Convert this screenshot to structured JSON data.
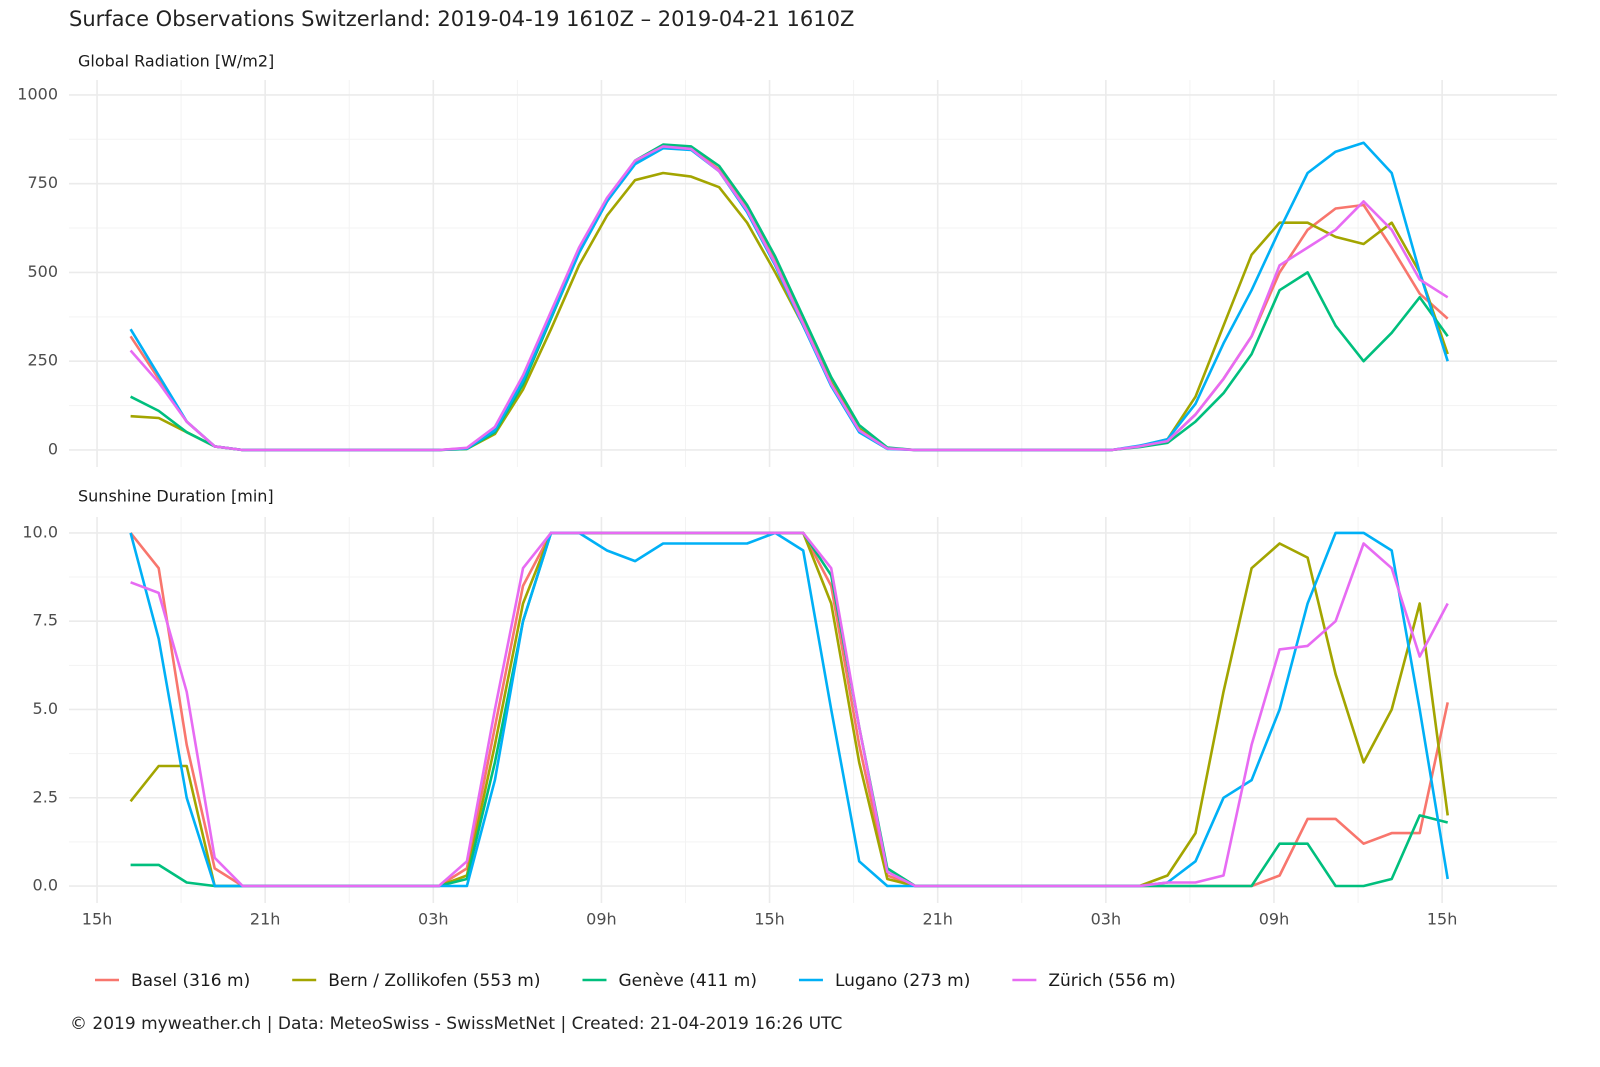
{
  "title": "Surface Observations Switzerland: 2019-04-19 1610Z – 2019-04-21 1610Z",
  "caption": "© 2019 myweather.ch | Data: MeteoSwiss - SwissMetNet | Created: 21-04-2019 16:26 UTC",
  "chart_data": [
    {
      "type": "line",
      "title": "Global Radiation [W/m2]",
      "x": [
        1.2,
        2.2,
        3.2,
        4.2,
        5.2,
        6.2,
        7.2,
        8.2,
        9.2,
        10.2,
        11.2,
        12.2,
        13.2,
        14.2,
        15.2,
        16.2,
        17.2,
        18.2,
        19.2,
        20.2,
        21.2,
        22.2,
        23.2,
        24.2,
        25.2,
        26.2,
        27.2,
        28.2,
        29.2,
        30.2,
        31.2,
        32.2,
        33.2,
        34.2,
        35.2,
        36.2,
        37.2,
        38.2,
        39.2,
        40.2,
        41.2,
        42.2,
        43.2,
        44.2,
        45.2,
        46.2,
        47.2,
        48.2
      ],
      "xlim": [
        -1.0,
        52.1
      ],
      "xticks": [
        {
          "value": 0,
          "label": "15h"
        },
        {
          "value": 6,
          "label": "21h"
        },
        {
          "value": 12,
          "label": "03h"
        },
        {
          "value": 18,
          "label": "09h"
        },
        {
          "value": 24,
          "label": "15h"
        },
        {
          "value": 30,
          "label": "21h"
        },
        {
          "value": 36,
          "label": "03h"
        },
        {
          "value": 42,
          "label": "09h"
        },
        {
          "value": 48,
          "label": "15h"
        }
      ],
      "ylim": [
        -48,
        1042
      ],
      "yticks": [
        0,
        250,
        500,
        750,
        1000
      ],
      "grid": true,
      "series": [
        {
          "name": "Basel (316 m)",
          "color": "#F8766D",
          "values": [
            320,
            200,
            80,
            10,
            0,
            0,
            0,
            0,
            0,
            0,
            0,
            0,
            5,
            60,
            200,
            380,
            560,
            700,
            810,
            855,
            850,
            790,
            680,
            530,
            360,
            190,
            60,
            5,
            0,
            0,
            0,
            0,
            0,
            0,
            0,
            0,
            10,
            25,
            100,
            200,
            320,
            500,
            620,
            680,
            690,
            570,
            440,
            370
          ]
        },
        {
          "name": "Bern / Zollikofen (553 m)",
          "color": "#A3A500",
          "values": [
            95,
            90,
            50,
            10,
            0,
            0,
            0,
            0,
            0,
            0,
            0,
            0,
            3,
            45,
            170,
            340,
            520,
            660,
            760,
            780,
            770,
            740,
            640,
            500,
            350,
            190,
            60,
            5,
            0,
            0,
            0,
            0,
            0,
            0,
            0,
            0,
            10,
            30,
            150,
            350,
            550,
            640,
            640,
            600,
            580,
            640,
            500,
            270
          ]
        },
        {
          "name": "Genève (411 m)",
          "color": "#00BF7D",
          "values": [
            150,
            110,
            50,
            10,
            0,
            0,
            0,
            0,
            0,
            0,
            0,
            0,
            3,
            50,
            185,
            370,
            555,
            700,
            815,
            860,
            855,
            800,
            690,
            545,
            375,
            205,
            70,
            7,
            0,
            0,
            0,
            0,
            0,
            0,
            0,
            0,
            8,
            20,
            80,
            160,
            270,
            450,
            500,
            350,
            250,
            330,
            430,
            320
          ]
        },
        {
          "name": "Lugano (273 m)",
          "color": "#00B0F6",
          "values": [
            340,
            210,
            80,
            10,
            0,
            0,
            0,
            0,
            0,
            0,
            0,
            0,
            4,
            55,
            195,
            375,
            555,
            700,
            805,
            850,
            845,
            785,
            670,
            520,
            350,
            180,
            50,
            3,
            0,
            0,
            0,
            0,
            0,
            0,
            0,
            0,
            12,
            30,
            130,
            300,
            450,
            620,
            780,
            840,
            865,
            780,
            500,
            250
          ]
        },
        {
          "name": "Zürich (556 m)",
          "color": "#E76BF3",
          "values": [
            280,
            190,
            80,
            10,
            0,
            0,
            0,
            0,
            0,
            0,
            0,
            0,
            6,
            65,
            210,
            390,
            570,
            710,
            815,
            855,
            848,
            785,
            675,
            525,
            355,
            185,
            55,
            4,
            0,
            0,
            0,
            0,
            0,
            0,
            0,
            0,
            10,
            25,
            100,
            200,
            320,
            520,
            570,
            620,
            700,
            620,
            480,
            430
          ]
        }
      ]
    },
    {
      "type": "line",
      "title": "Sunshine Duration [min]",
      "x": [
        1.2,
        2.2,
        3.2,
        4.2,
        5.2,
        6.2,
        7.2,
        8.2,
        9.2,
        10.2,
        11.2,
        12.2,
        13.2,
        14.2,
        15.2,
        16.2,
        17.2,
        18.2,
        19.2,
        20.2,
        21.2,
        22.2,
        23.2,
        24.2,
        25.2,
        26.2,
        27.2,
        28.2,
        29.2,
        30.2,
        31.2,
        32.2,
        33.2,
        34.2,
        35.2,
        36.2,
        37.2,
        38.2,
        39.2,
        40.2,
        41.2,
        42.2,
        43.2,
        44.2,
        45.2,
        46.2,
        47.2,
        48.2
      ],
      "xlim": [
        -1.0,
        52.1
      ],
      "xticks": [
        {
          "value": 0,
          "label": "15h"
        },
        {
          "value": 6,
          "label": "21h"
        },
        {
          "value": 12,
          "label": "03h"
        },
        {
          "value": 18,
          "label": "09h"
        },
        {
          "value": 24,
          "label": "15h"
        },
        {
          "value": 30,
          "label": "21h"
        },
        {
          "value": 36,
          "label": "03h"
        },
        {
          "value": 42,
          "label": "09h"
        },
        {
          "value": 48,
          "label": "15h"
        }
      ],
      "ylim": [
        -0.48,
        10.45
      ],
      "yticks": [
        {
          "value": 0,
          "label": "0.0"
        },
        {
          "value": 2.5,
          "label": "2.5"
        },
        {
          "value": 5,
          "label": "5.0"
        },
        {
          "value": 7.5,
          "label": "7.5"
        },
        {
          "value": 10,
          "label": "10.0"
        }
      ],
      "grid": true,
      "series": [
        {
          "name": "Basel (316 m)",
          "color": "#F8766D",
          "values": [
            10,
            9,
            4,
            0.5,
            0,
            0,
            0,
            0,
            0,
            0,
            0,
            0,
            0.5,
            4.5,
            8.5,
            10,
            10,
            10,
            10,
            10,
            10,
            10,
            10,
            10,
            10,
            8.5,
            4,
            0.3,
            0,
            0,
            0,
            0,
            0,
            0,
            0,
            0,
            0,
            0,
            0,
            0,
            0,
            0.3,
            1.9,
            1.9,
            1.2,
            1.5,
            1.5,
            5.2
          ]
        },
        {
          "name": "Bern / Zollikofen (553 m)",
          "color": "#A3A500",
          "values": [
            2.4,
            3.4,
            3.4,
            0,
            0,
            0,
            0,
            0,
            0,
            0,
            0,
            0,
            0.3,
            4,
            8,
            10,
            10,
            10,
            10,
            10,
            10,
            10,
            10,
            10,
            10,
            8,
            3.5,
            0.2,
            0,
            0,
            0,
            0,
            0,
            0,
            0,
            0,
            0,
            0.3,
            1.5,
            5.5,
            9,
            9.7,
            9.3,
            6,
            3.5,
            5,
            8,
            2
          ]
        },
        {
          "name": "Genève (411 m)",
          "color": "#00BF7D",
          "values": [
            0.6,
            0.6,
            0.1,
            0,
            0,
            0,
            0,
            0,
            0,
            0,
            0,
            0,
            0.2,
            3.5,
            7.5,
            10,
            10,
            10,
            10,
            10,
            10,
            10,
            10,
            10,
            10,
            8.8,
            4.5,
            0.5,
            0,
            0,
            0,
            0,
            0,
            0,
            0,
            0,
            0,
            0,
            0,
            0,
            0,
            1.2,
            1.2,
            0,
            0,
            0.2,
            2,
            1.8
          ]
        },
        {
          "name": "Lugano (273 m)",
          "color": "#00B0F6",
          "values": [
            10,
            7,
            2.5,
            0,
            0,
            0,
            0,
            0,
            0,
            0,
            0,
            0,
            0,
            3,
            7.5,
            10,
            10,
            9.5,
            9.2,
            9.7,
            9.7,
            9.7,
            9.7,
            10,
            9.5,
            5,
            0.7,
            0,
            0,
            0,
            0,
            0,
            0,
            0,
            0,
            0,
            0,
            0.1,
            0.7,
            2.5,
            3,
            5,
            8,
            10,
            10,
            9.5,
            5,
            0.2
          ]
        },
        {
          "name": "Zürich (556 m)",
          "color": "#E76BF3",
          "values": [
            8.6,
            8.3,
            5.5,
            0.8,
            0,
            0,
            0,
            0,
            0,
            0,
            0,
            0,
            0.7,
            5,
            9,
            10,
            10,
            10,
            10,
            10,
            10,
            10,
            10,
            10,
            10,
            9,
            4.5,
            0.4,
            0,
            0,
            0,
            0,
            0,
            0,
            0,
            0,
            0,
            0.1,
            0.1,
            0.3,
            4,
            6.7,
            6.8,
            7.5,
            9.7,
            9,
            6.5,
            8
          ]
        }
      ]
    }
  ]
}
